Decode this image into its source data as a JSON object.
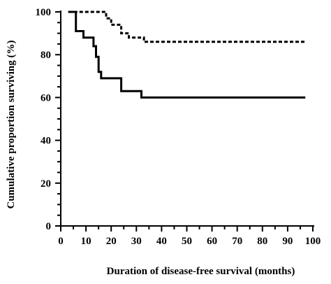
{
  "chart_data": {
    "type": "line",
    "title": "",
    "xlabel": "Duration of disease-free survival (months)",
    "ylabel": "Cumulative proportion surviving (%)",
    "xlim": [
      0,
      100
    ],
    "ylim": [
      0,
      100
    ],
    "x_ticks": [
      0,
      10,
      20,
      30,
      40,
      50,
      60,
      70,
      80,
      90,
      100
    ],
    "y_ticks": [
      0,
      20,
      40,
      60,
      80,
      100
    ],
    "x_minor_step": 5,
    "y_minor_step": 5,
    "grid": false,
    "legend": "none",
    "series": [
      {
        "style": "solid",
        "color": "#000000",
        "x": [
          3,
          6,
          6,
          9,
          9,
          13,
          13,
          14,
          14,
          15,
          15,
          16,
          16,
          18,
          18,
          24,
          24,
          32,
          32,
          97
        ],
        "y": [
          100,
          100,
          91,
          91,
          88,
          88,
          84,
          84,
          79,
          79,
          72,
          72,
          69,
          69,
          69,
          69,
          63,
          63,
          60,
          60
        ]
      },
      {
        "style": "dashed",
        "color": "#000000",
        "x": [
          3,
          18,
          18,
          20,
          20,
          24,
          24,
          27,
          27,
          33,
          33,
          97
        ],
        "y": [
          100,
          100,
          97,
          97,
          94,
          94,
          90,
          90,
          88,
          88,
          86,
          86
        ]
      }
    ]
  }
}
